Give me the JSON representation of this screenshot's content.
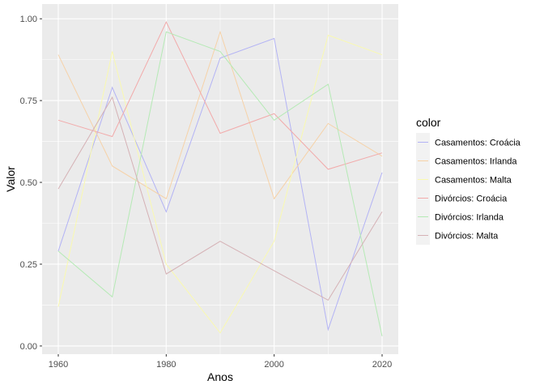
{
  "chart_data": {
    "type": "line",
    "x": [
      1960,
      1970,
      1980,
      1990,
      2000,
      2010,
      2020
    ],
    "series": [
      {
        "name": "Casamentos: Croácia",
        "color": "#b3b3f5",
        "values": [
          0.29,
          0.79,
          0.41,
          0.88,
          0.94,
          0.05,
          0.53
        ]
      },
      {
        "name": "Casamentos: Irlanda",
        "color": "#f6d2a8",
        "values": [
          0.89,
          0.55,
          0.45,
          0.96,
          0.45,
          0.68,
          0.58
        ]
      },
      {
        "name": "Casamentos: Malta",
        "color": "#f9f9b0",
        "values": [
          0.12,
          0.9,
          0.25,
          0.04,
          0.32,
          0.95,
          0.89
        ]
      },
      {
        "name": "Divórcios: Croácia",
        "color": "#f2aaaa",
        "values": [
          0.69,
          0.64,
          0.99,
          0.65,
          0.71,
          0.54,
          0.59
        ]
      },
      {
        "name": "Divórcios: Irlanda",
        "color": "#b5eab5",
        "values": [
          0.29,
          0.15,
          0.96,
          0.9,
          0.69,
          0.8,
          0.03
        ]
      },
      {
        "name": "Divórcios: Malta",
        "color": "#d5b1b5",
        "values": [
          0.48,
          0.76,
          0.22,
          0.32,
          0.23,
          0.14,
          0.41
        ]
      }
    ],
    "xlabel": "Anos",
    "ylabel": "Valor",
    "xlim": [
      1957,
      2023
    ],
    "ylim": [
      -0.025,
      1.045
    ],
    "xticks": [
      1960,
      1980,
      2000,
      2020
    ],
    "xtick_labels": [
      "1960",
      "1980",
      "2000",
      "2020"
    ],
    "yticks": [
      0,
      0.25,
      0.5,
      0.75,
      1.0
    ],
    "ytick_labels": [
      "0.00",
      "0.25",
      "0.50",
      "0.75",
      "1.00"
    ],
    "legend_title": "color",
    "legend_position": "right",
    "grid": true,
    "panel_background": "#ebebeb",
    "grid_color": "#ffffff"
  }
}
